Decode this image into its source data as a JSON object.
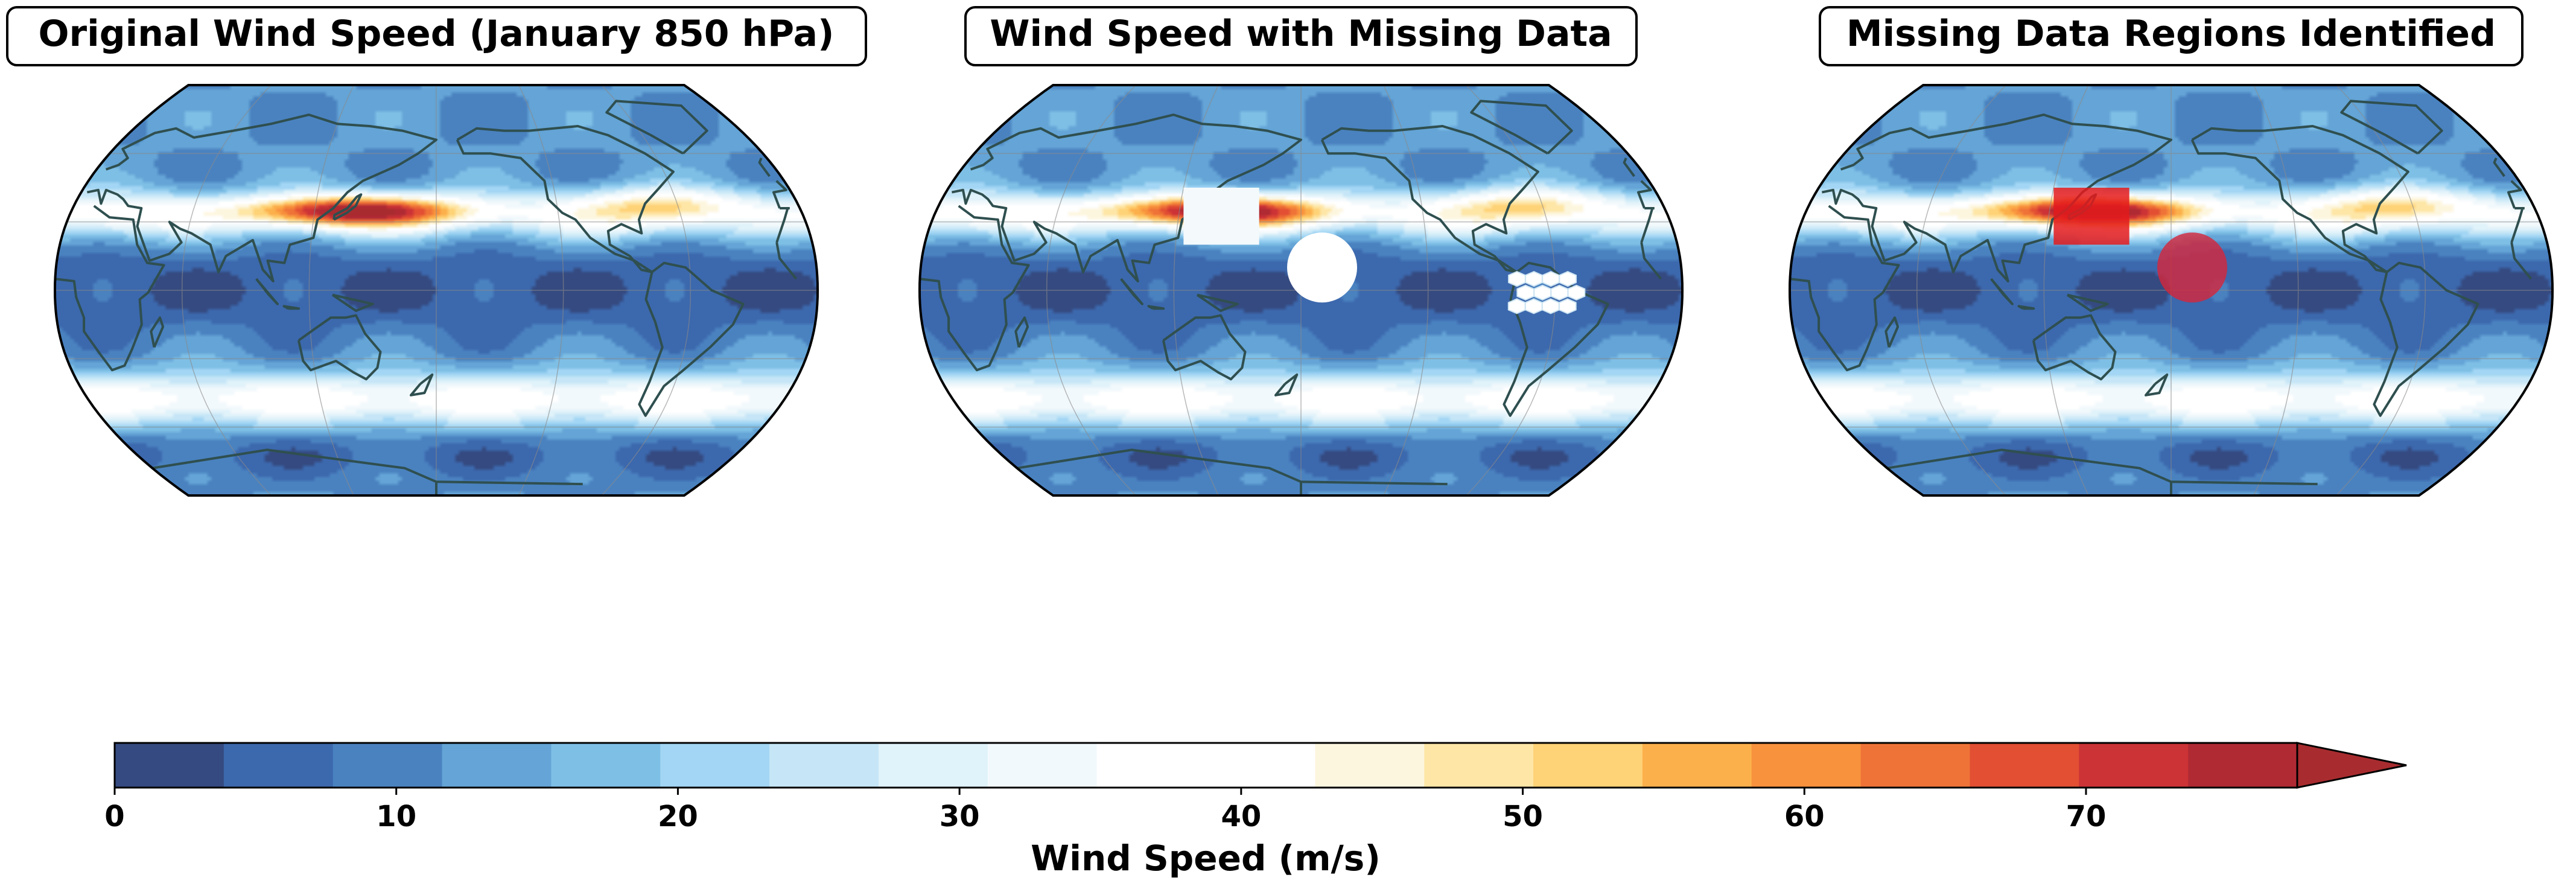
{
  "chart_data": {
    "type": "heatmap",
    "panels": [
      {
        "title": "Original Wind Speed (January 850 hPa)",
        "missing": []
      },
      {
        "title": "Wind Speed with Missing Data",
        "missing": [
          "rectangle",
          "circle",
          "scattered-hexagons"
        ]
      },
      {
        "title": "Missing Data Regions Identified",
        "missing": [
          "rectangle-highlight",
          "circle-highlight"
        ]
      }
    ],
    "projection": "Robinson",
    "colorbar": {
      "label": "Wind Speed (m/s)",
      "range": [
        0,
        77.5
      ],
      "extend": "max",
      "levels": [
        0,
        3.875,
        7.75,
        11.625,
        15.5,
        19.375,
        23.25,
        27.125,
        31,
        34.875,
        38.75,
        42.625,
        46.5,
        50.375,
        54.25,
        58.125,
        62,
        65.875,
        69.75,
        73.625,
        77.5
      ],
      "ticks": [
        0,
        10,
        20,
        30,
        40,
        50,
        60,
        70
      ]
    },
    "colors": [
      "#354a80",
      "#3c68ad",
      "#4a82c0",
      "#64a4d6",
      "#7ebfe6",
      "#a3d6f4",
      "#c6e6f7",
      "#e0f2fa",
      "#f2f9fc",
      "#ffffff",
      "#ffffff",
      "#fdf6df",
      "#fee6a7",
      "#fed276",
      "#fcb04b",
      "#f8923d",
      "#ef7337",
      "#e24f33",
      "#cc3336",
      "#b02a34"
    ],
    "extend_color": "#a82c2f",
    "jet_core_ms": 72,
    "highlight_color": "#e41a1c"
  }
}
